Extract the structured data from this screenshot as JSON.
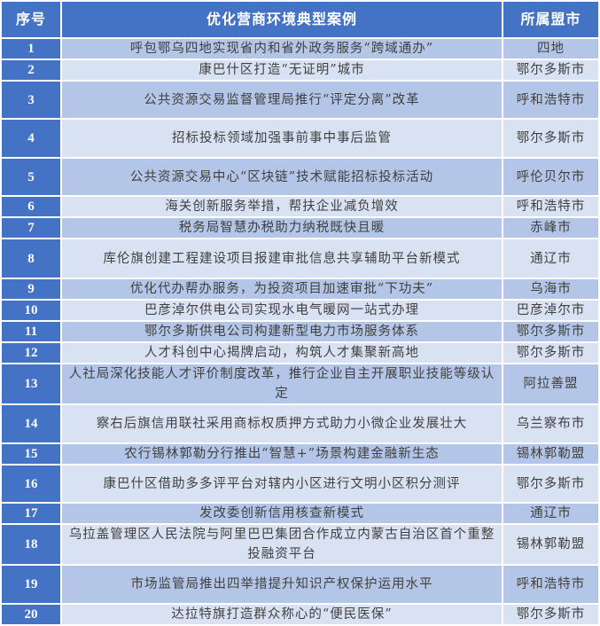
{
  "colors": {
    "header": "#4472c4",
    "row_dark": "#b4c6e7",
    "row_light": "#d9e2f3",
    "text": "#404040"
  },
  "headers": [
    "序号",
    "优化营商环境典型案例",
    "所属盟市"
  ],
  "rows": [
    {
      "no": "1",
      "case": "呼包鄂乌四地实现省内和省外政务服务“跨域通办”",
      "city": "四地"
    },
    {
      "no": "2",
      "case": "康巴什区打造“无证明”城市",
      "city": "鄂尔多斯市"
    },
    {
      "no": "3",
      "case": "公共资源交易监督管理局推行“评定分离”改革",
      "city": "呼和浩特市"
    },
    {
      "no": "4",
      "case": "招标投标领域加强事前事中事后监管",
      "city": "鄂尔多斯市"
    },
    {
      "no": "5",
      "case": "公共资源交易中心“区块链”技术赋能招标投标活动",
      "city": "呼伦贝尔市"
    },
    {
      "no": "6",
      "case": "海关创新服务举措，帮扶企业减负增效",
      "city": "呼和浩特市"
    },
    {
      "no": "7",
      "case": "税务局智慧办税助力纳税既快且暖",
      "city": "赤峰市"
    },
    {
      "no": "8",
      "case": "库伦旗创建工程建设项目报建审批信息共享辅助平台新模式",
      "city": "通辽市"
    },
    {
      "no": "9",
      "case": "优化代办帮办服务，为投资项目加速审批“下功夫”",
      "city": "乌海市"
    },
    {
      "no": "10",
      "case": "巴彦淖尔供电公司实现水电气暖网一站式办理",
      "city": "巴彦淖尔市"
    },
    {
      "no": "11",
      "case": "鄂尔多斯供电公司构建新型电力市场服务体系",
      "city": "鄂尔多斯市"
    },
    {
      "no": "12",
      "case": "人才科创中心揭牌启动，构筑人才集聚新高地",
      "city": "鄂尔多斯市"
    },
    {
      "no": "13",
      "case": "人社局深化技能人才评价制度改革，推行企业自主开展职业技能等级认定",
      "city": "阿拉善盟"
    },
    {
      "no": "14",
      "case": "察右后旗信用联社采用商标权质押方式助力小微企业发展壮大",
      "city": "乌兰察布市"
    },
    {
      "no": "15",
      "case": "农行锡林郭勒分行推出“智慧+”场景构建金融新生态",
      "city": "锡林郭勒盟"
    },
    {
      "no": "16",
      "case": "康巴什区借助多多评平台对辖内小区进行文明小区积分测评",
      "city": "鄂尔多斯市"
    },
    {
      "no": "17",
      "case": "发改委创新信用核查新模式",
      "city": "通辽市"
    },
    {
      "no": "18",
      "case": "乌拉盖管理区人民法院与阿里巴巴集团合作成立内蒙古自治区首个重整投融资平台",
      "city": "锡林郭勒盟"
    },
    {
      "no": "19",
      "case": "市场监管局推出四举措提升知识产权保护运用水平",
      "city": "呼和浩特市"
    },
    {
      "no": "20",
      "case": "达拉特旗打造群众称心的“便民医保”",
      "city": "鄂尔多斯市"
    }
  ]
}
